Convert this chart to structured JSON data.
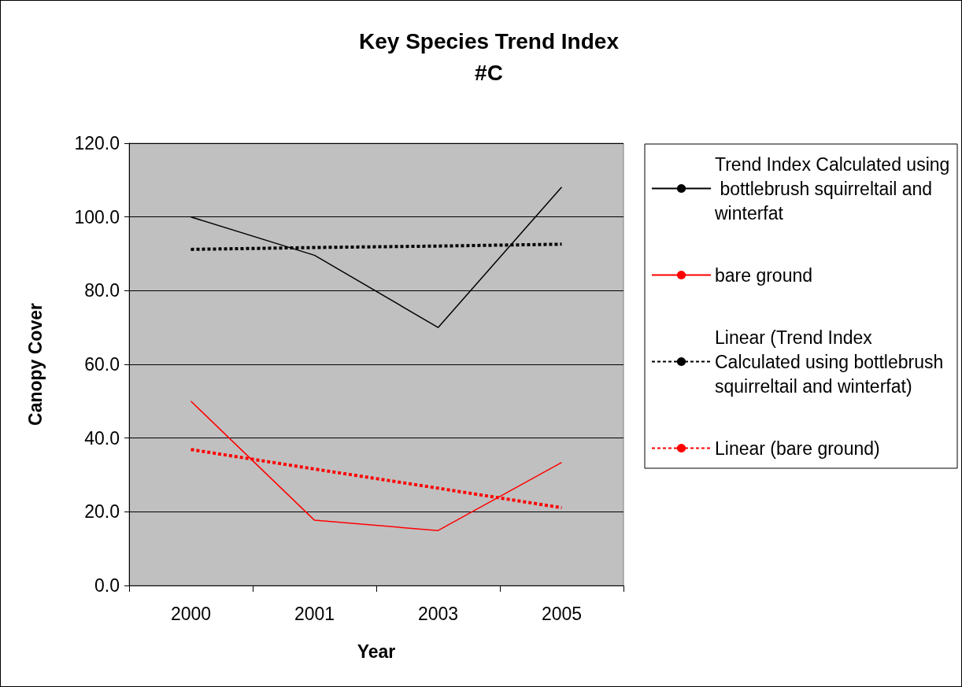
{
  "chart_data": {
    "type": "line",
    "title": "Key Species Trend Index",
    "subtitle": "#C",
    "xlabel": "Year",
    "ylabel": "Canopy Cover",
    "categories": [
      "2000",
      "2001",
      "2003",
      "2005"
    ],
    "series": [
      {
        "name": "Trend Index Calculated using bottlebrush squirreltail and winterfat",
        "color": "#000000",
        "values": [
          100.0,
          89.6,
          70.0,
          108.1
        ]
      },
      {
        "name": "bare ground",
        "color": "#ff0000",
        "values": [
          50.0,
          17.7,
          14.9,
          33.4
        ]
      },
      {
        "name": "Linear (Trend Index Calculated using bottlebrush squirreltail and winterfat)",
        "color": "#000000",
        "line_style": "dashed",
        "values": [
          91.2,
          91.7,
          92.1,
          92.6
        ]
      },
      {
        "name": "Linear (bare ground)",
        "color": "#ff0000",
        "line_style": "dashed",
        "values": [
          36.9,
          31.6,
          26.4,
          21.1
        ]
      }
    ],
    "ylim": [
      0,
      120
    ],
    "yticks": [
      {
        "value": 0,
        "label": "0.0"
      },
      {
        "value": 20,
        "label": "20.0"
      },
      {
        "value": 40,
        "label": "40.0"
      },
      {
        "value": 60,
        "label": "60.0"
      },
      {
        "value": 80,
        "label": "80.0"
      },
      {
        "value": 100,
        "label": "100.0"
      },
      {
        "value": 120,
        "label": "120.0"
      }
    ],
    "grid": "y",
    "legend": "right",
    "marker": "none",
    "line_style": "solid"
  }
}
